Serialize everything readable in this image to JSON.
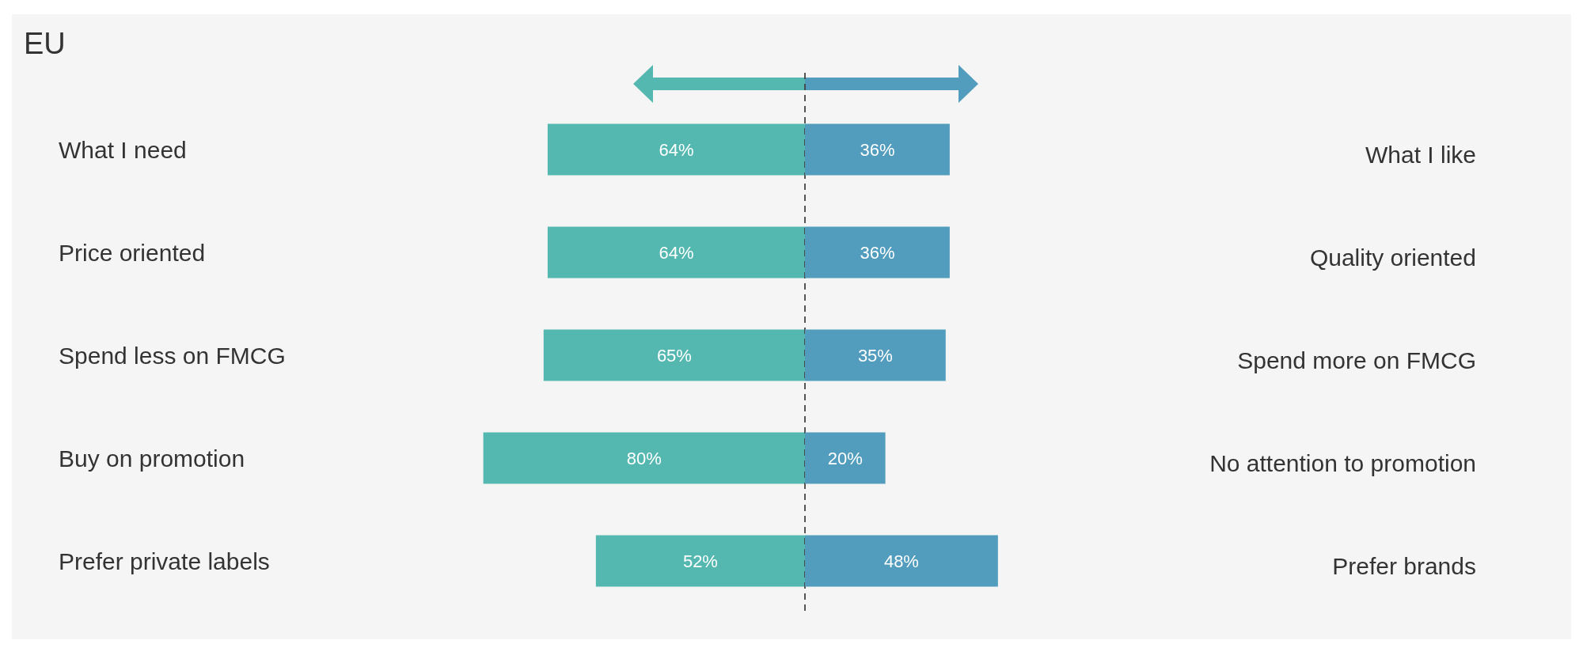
{
  "chart_data": [
    {
      "type": "bar",
      "orientation": "horizontal",
      "title": "EU",
      "categories": [
        "What I need",
        "Price oriented",
        "Spend less on FMCG",
        "Buy on promotion",
        "Prefer private labels"
      ],
      "series": [
        {
          "color": "#55b8b0",
          "values": [
            64,
            64,
            65,
            80,
            52
          ],
          "value_labels": [
            "64%",
            "64%",
            "65%",
            "80%",
            "52%"
          ]
        }
      ],
      "xlim": [
        80,
        0
      ],
      "ref_lines": [
        {
          "axis": "x",
          "value": 0,
          "line_style": "dashed",
          "color": "#444444"
        }
      ]
    },
    {
      "type": "bar",
      "orientation": "horizontal",
      "categories": [
        "What I like",
        "Quality oriented",
        "Spend more on FMCG",
        "No attention to promotion",
        "Prefer brands"
      ],
      "series": [
        {
          "color": "#529dbd",
          "values": [
            36,
            36,
            35,
            20,
            48
          ],
          "value_labels": [
            "36%",
            "36%",
            "35%",
            "20%",
            "48%"
          ]
        }
      ],
      "xlim": [
        0,
        48
      ]
    }
  ]
}
